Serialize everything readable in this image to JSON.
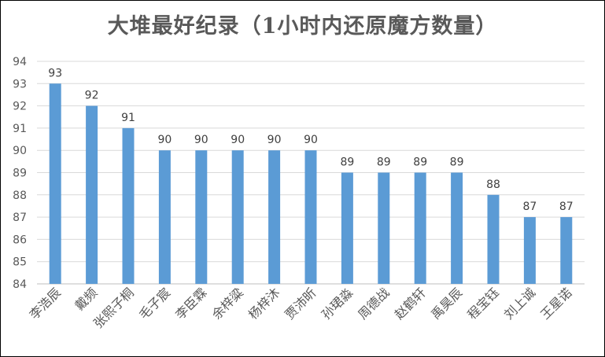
{
  "chart_data": {
    "type": "bar",
    "title": "大堆最好纪录（1小时内还原魔方数量）",
    "categories": [
      "李浩辰",
      "戴频",
      "张熙子桐",
      "毛子宸",
      "李臣霖",
      "余梓粱",
      "杨梓沐",
      "贾沛昕",
      "孙珺淼",
      "周德战",
      "赵鹤轩",
      "禹昊辰",
      "程宝钰",
      "刘上诚",
      "王星诺"
    ],
    "values": [
      93,
      92,
      91,
      90,
      90,
      90,
      90,
      90,
      89,
      89,
      89,
      89,
      88,
      87,
      87
    ],
    "ylim": [
      84,
      94
    ],
    "yticks": [
      84,
      85,
      86,
      87,
      88,
      89,
      90,
      91,
      92,
      93,
      94
    ],
    "grid": true,
    "bar_color": "#5b9bd5"
  }
}
